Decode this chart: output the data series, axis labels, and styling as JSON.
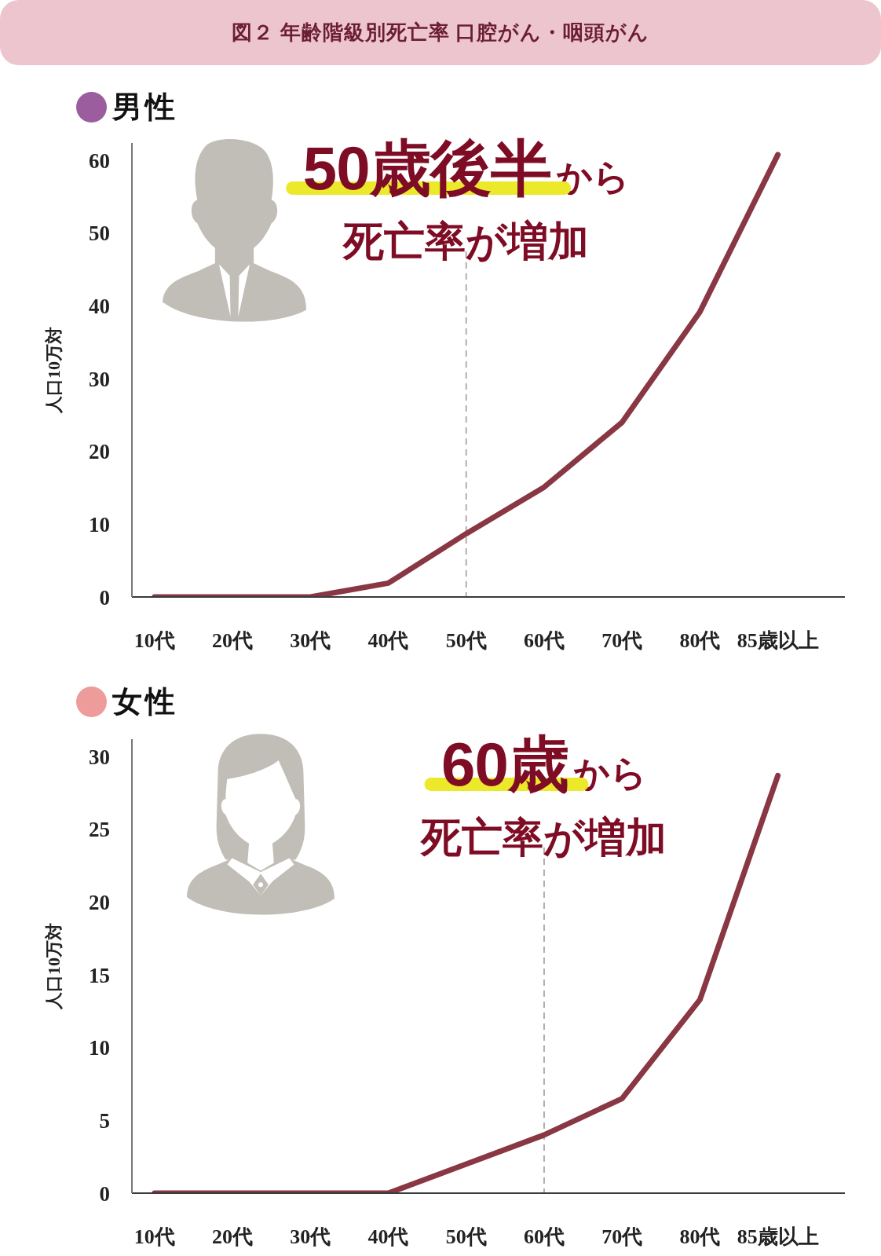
{
  "chart_data": [
    {
      "type": "line",
      "title": "図２ 年齢階級別死亡率 口腔がん・咽頭がん",
      "subtitle": "男性",
      "ylabel": "人口10万対",
      "categories": [
        "10代",
        "20代",
        "30代",
        "40代",
        "50代",
        "60代",
        "70代",
        "80代",
        "85歳以上"
      ],
      "ylim": [
        0,
        62.4
      ],
      "yticks": [
        0,
        10,
        20,
        30,
        40,
        50,
        60
      ],
      "series": [
        {
          "color": "#883743",
          "values": [
            0,
            0,
            0,
            1.9,
            8.7,
            15.1,
            24.0,
            39.2,
            60.8
          ]
        }
      ],
      "marker": "none",
      "ref_lines": [
        {
          "axis": "x",
          "value": "50代",
          "color": "#b3ada7",
          "line_style": "dashed"
        }
      ],
      "annotations": [
        "50歳後半",
        "から",
        "死亡率が増加"
      ]
    },
    {
      "type": "line",
      "subtitle": "女性",
      "ylabel": "人口10万対",
      "categories": [
        "10代",
        "20代",
        "30代",
        "40代",
        "50代",
        "60代",
        "70代",
        "80代",
        "85歳以上"
      ],
      "ylim": [
        0,
        31.2
      ],
      "yticks": [
        0,
        5,
        10,
        15,
        20,
        25,
        30
      ],
      "series": [
        {
          "color": "#883743",
          "values": [
            0,
            0,
            0,
            0,
            2.0,
            4.0,
            6.5,
            13.3,
            28.7
          ]
        }
      ],
      "marker": "none",
      "ref_lines": [
        {
          "axis": "x",
          "value": "60代",
          "color": "#b3ada7",
          "line_style": "dashed"
        }
      ],
      "annotations": [
        "60歳",
        "から",
        "死亡率が増加"
      ]
    }
  ]
}
